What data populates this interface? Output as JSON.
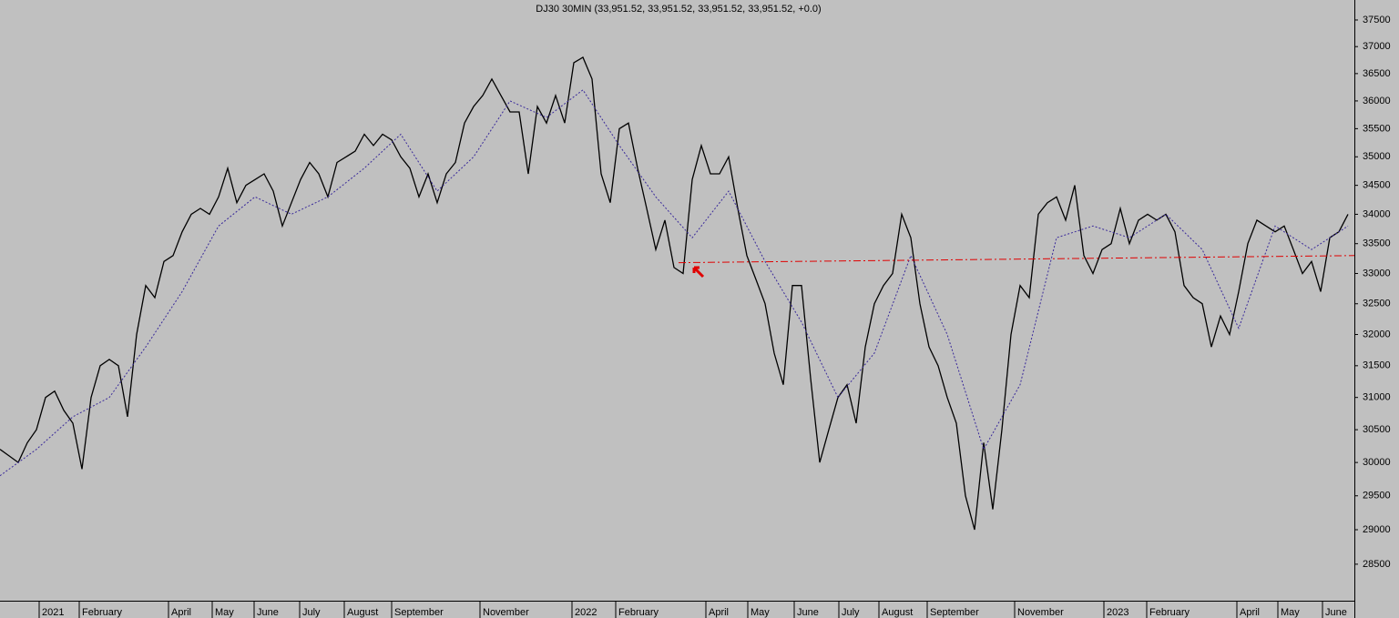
{
  "chart_data": {
    "type": "line",
    "title": "DJ30 30MIN (33,951.52, 33,951.52, 33,951.52, 33,951.52, +0.0)",
    "log_scale": true,
    "ylim": [
      27980,
      37880
    ],
    "yticks": [
      28500,
      29000,
      29500,
      30000,
      30500,
      31000,
      31500,
      32000,
      32500,
      33000,
      33500,
      34000,
      34500,
      35000,
      35500,
      36000,
      36500,
      37000,
      37500
    ],
    "xlim": [
      0,
      148.7
    ],
    "xticks": [
      {
        "value": 4.3,
        "label": "2021"
      },
      {
        "value": 8.7,
        "label": "February"
      },
      {
        "value": 18.5,
        "label": "April"
      },
      {
        "value": 23.3,
        "label": "May"
      },
      {
        "value": 27.9,
        "label": "June"
      },
      {
        "value": 32.9,
        "label": "July"
      },
      {
        "value": 37.8,
        "label": "August"
      },
      {
        "value": 43.0,
        "label": "September"
      },
      {
        "value": 52.7,
        "label": "November"
      },
      {
        "value": 62.8,
        "label": "2022"
      },
      {
        "value": 67.6,
        "label": "February"
      },
      {
        "value": 77.5,
        "label": "April"
      },
      {
        "value": 82.1,
        "label": "May"
      },
      {
        "value": 87.2,
        "label": "June"
      },
      {
        "value": 92.1,
        "label": "July"
      },
      {
        "value": 96.5,
        "label": "August"
      },
      {
        "value": 101.8,
        "label": "September"
      },
      {
        "value": 111.4,
        "label": "November"
      },
      {
        "value": 121.2,
        "label": "2023"
      },
      {
        "value": 125.9,
        "label": "February"
      },
      {
        "value": 135.8,
        "label": "April"
      },
      {
        "value": 140.3,
        "label": "May"
      },
      {
        "value": 145.2,
        "label": "June"
      }
    ],
    "series": [
      {
        "color": "#000000",
        "style": "solid",
        "x": [
          0,
          1,
          2,
          3,
          4,
          5,
          6,
          7,
          8,
          9,
          10,
          11,
          12,
          13,
          14,
          15,
          16,
          17,
          18,
          19,
          20,
          21,
          22,
          23,
          24,
          25,
          26,
          27,
          28,
          29,
          30,
          31,
          32,
          33,
          34,
          35,
          36,
          37,
          38,
          39,
          40,
          41,
          42,
          43,
          44,
          45,
          46,
          47,
          48,
          49,
          50,
          51,
          52,
          53,
          54,
          55,
          56,
          57,
          58,
          59,
          60,
          61,
          62,
          63,
          64,
          65,
          66,
          67,
          68,
          69,
          70,
          71,
          72,
          73,
          74,
          75,
          76,
          77,
          78,
          79,
          80,
          81,
          82,
          83,
          84,
          85,
          86,
          87,
          88,
          89,
          90,
          91,
          92,
          93,
          94,
          95,
          96,
          97,
          98,
          99,
          100,
          101,
          102,
          103,
          104,
          105,
          106,
          107,
          108,
          109,
          110,
          111,
          112,
          113,
          114,
          115,
          116,
          117,
          118,
          119,
          120,
          121,
          122,
          123,
          124,
          125,
          126,
          127,
          128,
          129,
          130,
          131,
          132,
          133,
          134,
          135,
          136,
          137,
          138,
          139,
          140,
          141,
          142,
          143,
          144,
          145,
          146,
          147,
          148
        ],
        "values": [
          30200,
          30100,
          30000,
          30300,
          30500,
          31000,
          31100,
          30800,
          30600,
          29900,
          31000,
          31500,
          31600,
          31500,
          30700,
          32000,
          32800,
          32600,
          33200,
          33300,
          33700,
          34000,
          34100,
          34000,
          34300,
          34800,
          34200,
          34500,
          34600,
          34700,
          34400,
          33800,
          34200,
          34600,
          34900,
          34700,
          34300,
          34900,
          35000,
          35100,
          35400,
          35200,
          35400,
          35300,
          35000,
          34800,
          34300,
          34700,
          34200,
          34700,
          34900,
          35600,
          35900,
          36100,
          36400,
          36100,
          35800,
          35800,
          34700,
          35900,
          35600,
          36100,
          35600,
          36700,
          36800,
          36400,
          34700,
          34200,
          35500,
          35600,
          34800,
          34100,
          33400,
          33900,
          33100,
          33000,
          34600,
          35200,
          34700,
          34700,
          35000,
          34100,
          33300,
          32900,
          32500,
          31700,
          31200,
          32800,
          32800,
          31300,
          30000,
          30500,
          31000,
          31200,
          30600,
          31800,
          32500,
          32800,
          33000,
          34000,
          33600,
          32500,
          31800,
          31500,
          31000,
          30600,
          29500,
          29000,
          30300,
          29300,
          30500,
          32000,
          32800,
          32600,
          34000,
          34200,
          34300,
          33900,
          34500,
          33300,
          33000,
          33400,
          33500,
          34100,
          33500,
          33900,
          34000,
          33900,
          34000,
          33700,
          32800,
          32600,
          32500,
          31800,
          32300,
          32000,
          32700,
          33500,
          33900,
          33800,
          33700,
          33800,
          33400,
          33000,
          33200,
          32700,
          33600,
          33700,
          34000
        ]
      },
      {
        "color": "#3a2a9a",
        "style": "dotted",
        "x": [
          0,
          4,
          8,
          12,
          16,
          20,
          24,
          28,
          32,
          36,
          40,
          44,
          48,
          52,
          56,
          60,
          64,
          68,
          72,
          76,
          80,
          84,
          88,
          92,
          96,
          100,
          104,
          108,
          112,
          116,
          120,
          124,
          128,
          132,
          136,
          140,
          144,
          148
        ],
        "values": [
          29800,
          30200,
          30700,
          31000,
          31800,
          32700,
          33800,
          34300,
          34000,
          34300,
          34800,
          35400,
          34400,
          35000,
          36000,
          35700,
          36200,
          35200,
          34300,
          33600,
          34400,
          33200,
          32200,
          31000,
          31700,
          33300,
          32000,
          30200,
          31200,
          33600,
          33800,
          33600,
          34000,
          33400,
          32100,
          33800,
          33400,
          33800
        ]
      }
    ],
    "reference_line": {
      "color": "#e00000",
      "x": [
        74.5,
        148.7
      ],
      "values": [
        33180,
        33300
      ]
    }
  }
}
